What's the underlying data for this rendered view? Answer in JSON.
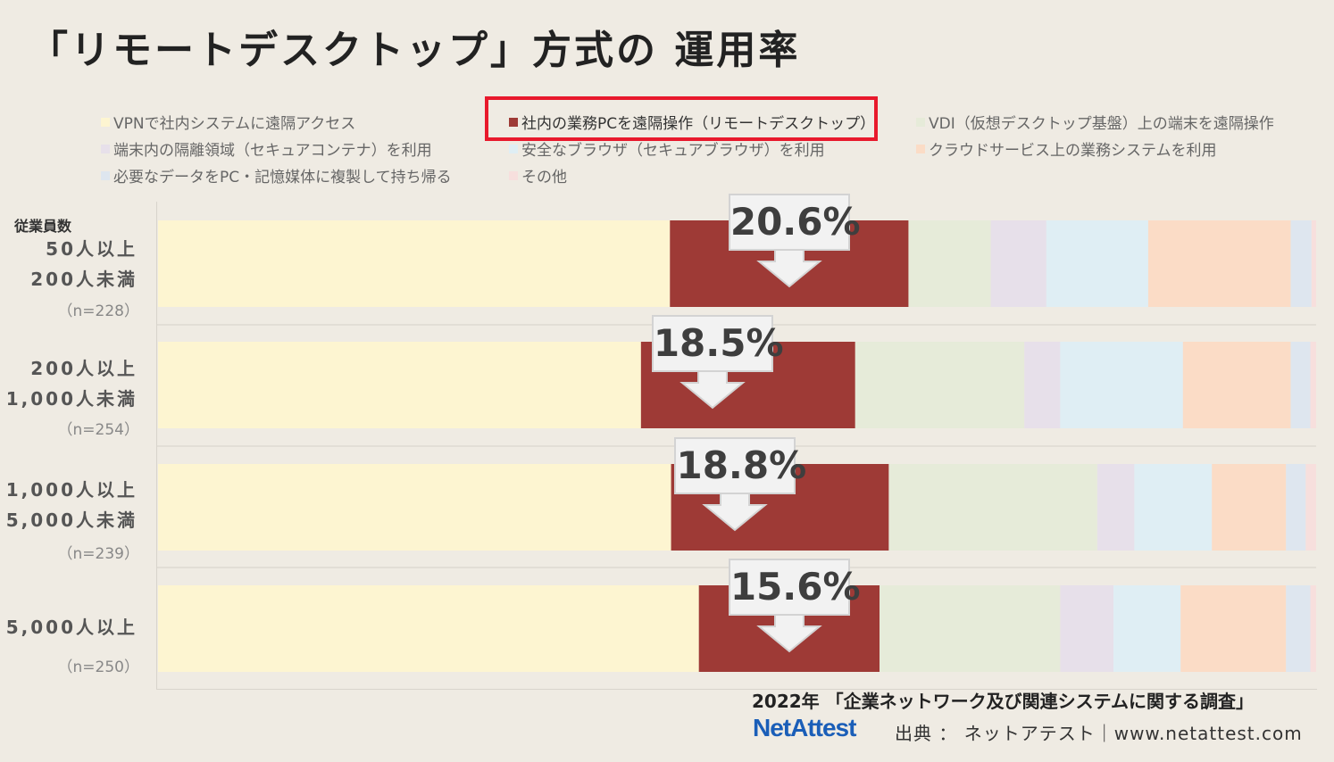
{
  "title": "「リモートデスクトップ」方式の 運用率",
  "legend": [
    {
      "label": "VPNで社内システムに遠隔アクセス",
      "color": "#fdf5d1"
    },
    {
      "label": "社内の業務PCを遠隔操作（リモートデスクトップ）",
      "color": "#9e3a36"
    },
    {
      "label": "VDI（仮想デスクトップ基盤）上の端末を遠隔操作",
      "color": "#e6ebd9"
    },
    {
      "label": "端末内の隔離領域（セキュアコンテナ）を利用",
      "color": "#e7e0ea"
    },
    {
      "label": "安全なブラウザ（セキュアブラウザ）を利用",
      "color": "#dfeef4"
    },
    {
      "label": "クラウドサービス上の業務システムを利用",
      "color": "#fbdcc6"
    },
    {
      "label": "必要なデータをPC・記憶媒体に複製して持ち帰る",
      "color": "#dee6ef"
    },
    {
      "label": "その他",
      "color": "#f7dfdd"
    }
  ],
  "y_axis_title": "従業員数",
  "rows": [
    {
      "lines": [
        "50人以上",
        "200人未満"
      ],
      "n": "（n=228）",
      "callout": "20.6%"
    },
    {
      "lines": [
        "200人以上",
        "1,000人未満"
      ],
      "n": "（n=254）",
      "callout": "18.5%"
    },
    {
      "lines": [
        "1,000人以上",
        "5,000人未満"
      ],
      "n": "（n=239）",
      "callout": "18.8%"
    },
    {
      "lines": [
        "5,000人以上"
      ],
      "n": "（n=250）",
      "callout": "15.6%"
    }
  ],
  "chart_data": {
    "type": "bar",
    "stacked": true,
    "orientation": "horizontal",
    "normalized": true,
    "categories": [
      "50人以上 200人未満",
      "200人以上 1,000人未満",
      "1,000人以上 5,000人未満",
      "5,000人以上"
    ],
    "series": [
      {
        "name": "VPNで社内システムに遠隔アクセス",
        "values": [
          44.2,
          41.7,
          44.3,
          46.7
        ]
      },
      {
        "name": "社内の業務PCを遠隔操作（リモートデスクトップ）",
        "values": [
          20.6,
          18.5,
          18.8,
          15.6
        ]
      },
      {
        "name": "VDI（仮想デスクトップ基盤）上の端末を遠隔操作",
        "values": [
          7.1,
          14.6,
          18.0,
          15.6
        ]
      },
      {
        "name": "端末内の隔離領域（セキュアコンテナ）を利用",
        "values": [
          4.8,
          3.1,
          3.2,
          4.6
        ]
      },
      {
        "name": "安全なブラウザ（セキュアブラウザ）を利用",
        "values": [
          8.8,
          10.6,
          6.7,
          5.8
        ]
      },
      {
        "name": "クラウドサービス上の業務システムを利用",
        "values": [
          12.3,
          9.3,
          6.4,
          9.1
        ]
      },
      {
        "name": "必要なデータをPC・記憶媒体に複製して持ち帰る",
        "values": [
          1.8,
          1.7,
          1.7,
          2.1
        ]
      },
      {
        "name": "その他",
        "values": [
          0.4,
          0.5,
          0.9,
          0.5
        ]
      }
    ],
    "highlight_series": "社内の業務PCを遠隔操作（リモートデスクトップ）"
  },
  "footer": {
    "survey": "2022年 「企業ネットワーク及び関連システムに関する調査」",
    "logo": "NetAttest",
    "source": "出典 ： ネットアテスト｜www.netattest.com"
  }
}
